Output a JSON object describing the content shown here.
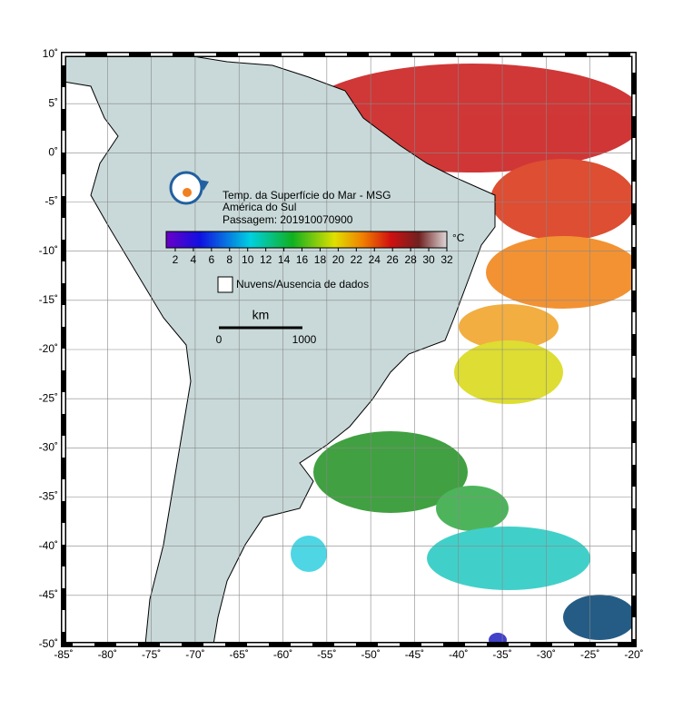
{
  "header": {
    "title": "Temp. da Superfície do Mar - MSG",
    "region": "América do Sul",
    "pass": "Passagem: 201910070900"
  },
  "colorbar": {
    "unit": "°C",
    "clim": [
      1,
      32
    ],
    "ticks": [
      2,
      4,
      6,
      8,
      10,
      12,
      14,
      16,
      18,
      20,
      22,
      24,
      26,
      28,
      30,
      32
    ]
  },
  "legend": {
    "no_data": "Nuvens/Ausencia de dados"
  },
  "scale": {
    "unit": "km",
    "start": 0,
    "end": 1000
  },
  "map": {
    "xlim": [
      -85,
      -20
    ],
    "ylim": [
      -50,
      10
    ],
    "lon_ticks": [
      {
        "value": -85,
        "label": "-85˚"
      },
      {
        "value": -80,
        "label": "-80˚"
      },
      {
        "value": -75,
        "label": "-75˚"
      },
      {
        "value": -70,
        "label": "-70˚"
      },
      {
        "value": -65,
        "label": "-65˚"
      },
      {
        "value": -60,
        "label": "-60˚"
      },
      {
        "value": -55,
        "label": "-55˚"
      },
      {
        "value": -50,
        "label": "-50˚"
      },
      {
        "value": -45,
        "label": "-45˚"
      },
      {
        "value": -40,
        "label": "-40˚"
      },
      {
        "value": -35,
        "label": "-35˚"
      },
      {
        "value": -30,
        "label": "-30˚"
      },
      {
        "value": -25,
        "label": "-25˚"
      },
      {
        "value": -20,
        "label": "-20˚"
      }
    ],
    "lat_ticks": [
      {
        "value": 10,
        "label": "10˚"
      },
      {
        "value": 5,
        "label": "5˚"
      },
      {
        "value": 0,
        "label": "0˚"
      },
      {
        "value": -5,
        "label": "-5˚"
      },
      {
        "value": -10,
        "label": "-10˚"
      },
      {
        "value": -15,
        "label": "-15˚"
      },
      {
        "value": -20,
        "label": "-20˚"
      },
      {
        "value": -25,
        "label": "-25˚"
      },
      {
        "value": -30,
        "label": "-30˚"
      },
      {
        "value": -35,
        "label": "-35˚"
      },
      {
        "value": -40,
        "label": "-40˚"
      },
      {
        "value": -45,
        "label": "-45˚"
      },
      {
        "value": -50,
        "label": "-50˚"
      }
    ]
  }
}
